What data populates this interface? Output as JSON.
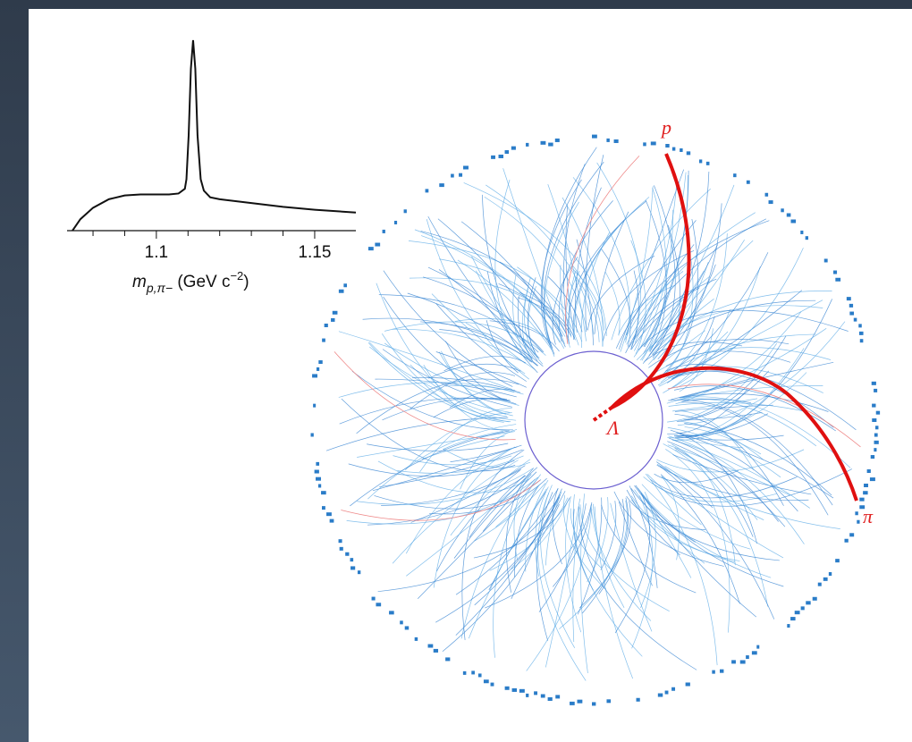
{
  "chart_data": {
    "type": "line",
    "x": [
      1.0735,
      1.076,
      1.08,
      1.085,
      1.09,
      1.095,
      1.1,
      1.104,
      1.107,
      1.109,
      1.1095,
      1.1102,
      1.1109,
      1.1116,
      1.1123,
      1.113,
      1.114,
      1.115,
      1.117,
      1.12,
      1.13,
      1.14,
      1.15,
      1.163
    ],
    "values": [
      0,
      6,
      12,
      16.5,
      18.5,
      19,
      19,
      19,
      19.5,
      22,
      27,
      50,
      85,
      100,
      85,
      50,
      27,
      21,
      17.5,
      16.5,
      14.5,
      12.5,
      11,
      9.5
    ],
    "color": "#111111",
    "xlim": [
      1.0718,
      1.163
    ],
    "xticks": [
      1.1,
      1.15
    ],
    "xminorticks": [
      1.08,
      1.09,
      1.11,
      1.12,
      1.13,
      1.14
    ],
    "ylim": [
      0,
      100
    ],
    "xlabel": [
      "m",
      "p,π−",
      " (GeV c",
      "−2",
      ")"
    ]
  },
  "event_display": {
    "proton_label": "p",
    "pion_label": "π",
    "lambda_label": "Λ"
  }
}
